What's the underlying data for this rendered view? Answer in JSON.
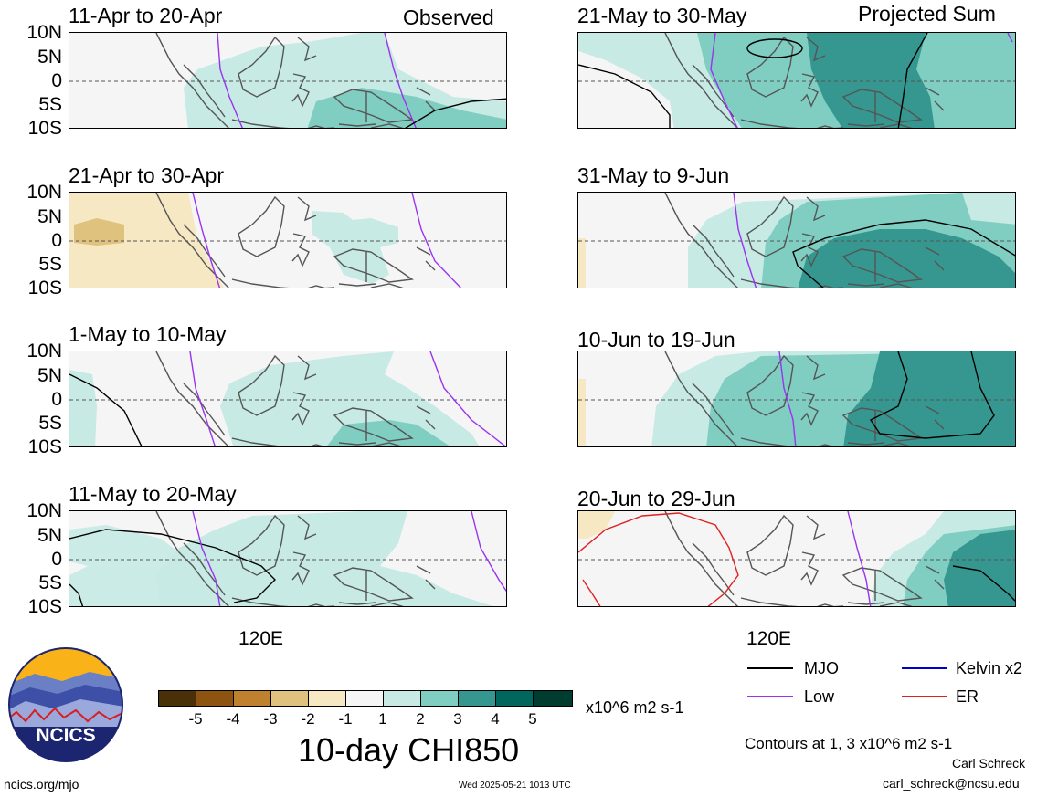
{
  "headers": {
    "left": "Observed",
    "right": "Projected Sum"
  },
  "lat_labels": [
    "10N",
    "5N",
    "0",
    "5S",
    "10S"
  ],
  "lon_label": "120E",
  "panels": [
    {
      "title": "11-Apr to 20-Apr"
    },
    {
      "title": "21-Apr to 30-Apr"
    },
    {
      "title": "1-May to 10-May"
    },
    {
      "title": "11-May to 20-May"
    },
    {
      "title": "21-May to 30-May"
    },
    {
      "title": "31-May to 9-Jun"
    },
    {
      "title": "10-Jun to 19-Jun"
    },
    {
      "title": "20-Jun to 29-Jun"
    }
  ],
  "colorbar": {
    "labels": [
      "-5",
      "-4",
      "-3",
      "-2",
      "-1",
      "1",
      "2",
      "3",
      "4",
      "5"
    ],
    "colors": [
      "#4a3008",
      "#8c5410",
      "#bf812d",
      "#dfc27d",
      "#f6e8c3",
      "#f5f5f5",
      "#c7eae5",
      "#80cdc1",
      "#35978f",
      "#01665e",
      "#003c30"
    ],
    "units": "x10^6 m2 s-1",
    "title": "10-day CHI850"
  },
  "legend": {
    "mjo": "MJO",
    "low": "Low",
    "kelvin": "Kelvin x2",
    "er": "ER",
    "colors": {
      "mjo": "#000000",
      "low": "#9a32f0",
      "kelvin": "#0000cc",
      "er": "#e02020"
    }
  },
  "contour_note": "Contours at 1, 3 x10^6 m2 s-1",
  "author": "Carl Schreck",
  "email": "carl_schreck@ncsu.edu",
  "url": "ncics.org/mjo",
  "timestamp": "Wed 2025-05-21 1013 UTC",
  "logo_text": "NCICS"
}
